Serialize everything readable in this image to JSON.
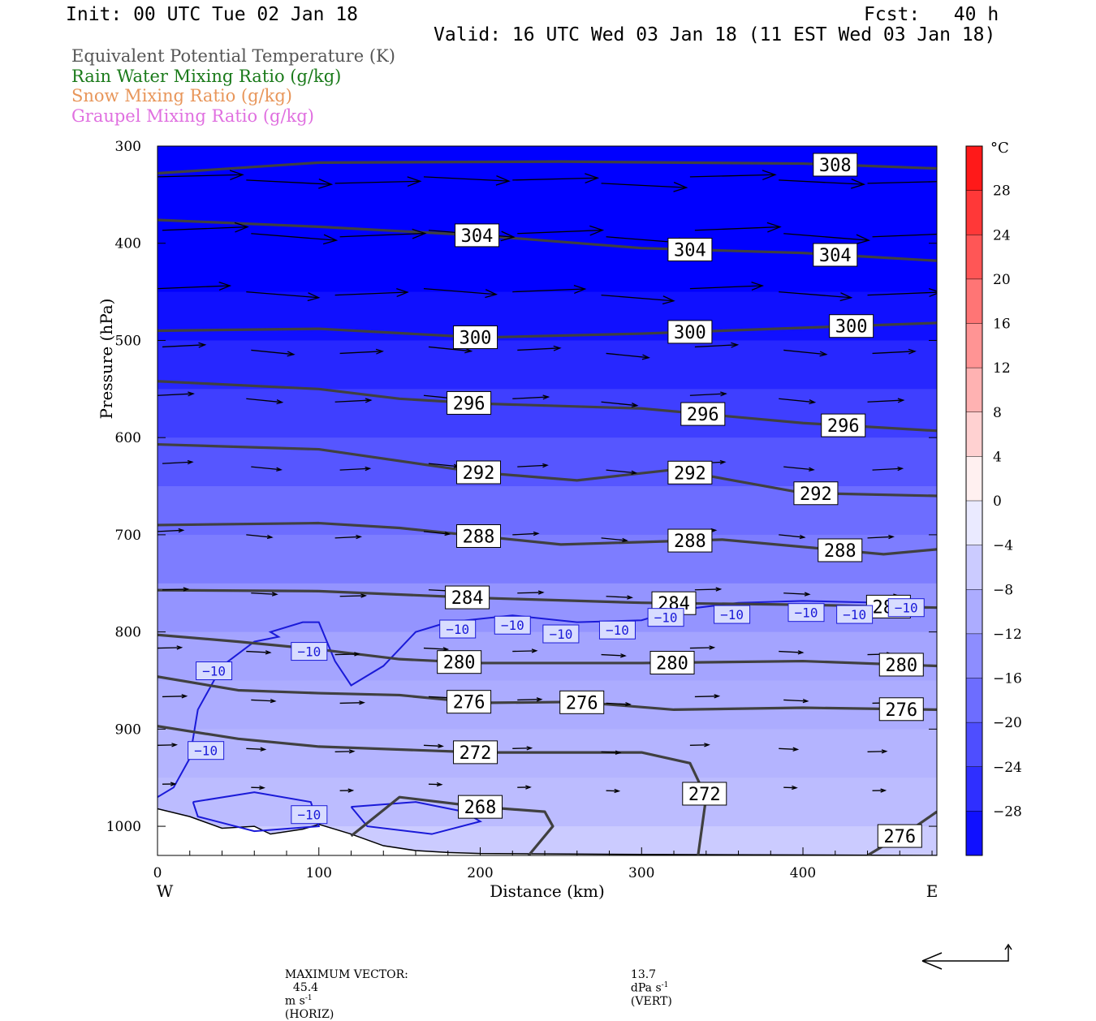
{
  "header": {
    "init": "Init: 00 UTC Tue 02 Jan 18",
    "fcst": "Fcst:   40 h",
    "valid": "Valid: 16 UTC Wed 03 Jan 18 (11 EST Wed 03 Jan 18)"
  },
  "legend": [
    {
      "text": "Equivalent Potential Temperature (K)",
      "color": "#555555"
    },
    {
      "text": "Rain Water Mixing Ratio (g/kg)",
      "color": "#1a7a1a"
    },
    {
      "text": "Snow Mixing Ratio (g/kg)",
      "color": "#e8965a"
    },
    {
      "text": "Graupel Mixing Ratio (g/kg)",
      "color": "#e070e0"
    }
  ],
  "footer": {
    "max_vector_label": "MAXIMUM VECTOR:",
    "horiz_value": "45.4",
    "horiz_unit": "m s",
    "horiz_exp": "-1",
    "horiz_tag": "(HORIZ)",
    "vert_value": "13.7",
    "vert_unit": "dPa s",
    "vert_exp": "-1",
    "vert_tag": "(VERT)"
  },
  "chart_data": {
    "type": "heatmap",
    "xlabel": "Distance (km)",
    "ylabel": "Pressure (hPa)",
    "x_ticks": [
      0,
      100,
      200,
      300,
      400
    ],
    "y_ticks": [
      300,
      400,
      500,
      600,
      700,
      800,
      900,
      1000
    ],
    "xlim": [
      0,
      483
    ],
    "ylim": [
      1030,
      300
    ],
    "x_end_labels": {
      "left": "W",
      "right": "E"
    },
    "colorbar": {
      "unit": "°C",
      "labels": [
        "28",
        "24",
        "20",
        "16",
        "12",
        "8",
        "4",
        "0",
        "−4",
        "−8",
        "−12",
        "−16",
        "−20",
        "−24",
        "−28"
      ]
    },
    "temperature_field_bands": [
      {
        "p": 300,
        "t": -32
      },
      {
        "p": 450,
        "t": -30
      },
      {
        "p": 500,
        "t": -27
      },
      {
        "p": 550,
        "t": -24
      },
      {
        "p": 600,
        "t": -21
      },
      {
        "p": 650,
        "t": -18
      },
      {
        "p": 700,
        "t": -16
      },
      {
        "p": 750,
        "t": -13
      },
      {
        "p": 800,
        "t": -11
      },
      {
        "p": 850,
        "t": -10
      },
      {
        "p": 900,
        "t": -9
      },
      {
        "p": 950,
        "t": -8
      },
      {
        "p": 1000,
        "t": -6
      },
      {
        "p": 1030,
        "t": -5
      }
    ],
    "theta_e_contours": [
      {
        "value": 308,
        "points": [
          [
            0,
            328
          ],
          [
            100,
            317
          ],
          [
            250,
            316
          ],
          [
            400,
            318
          ],
          [
            483,
            323
          ]
        ],
        "labels": [
          {
            "x": 420,
            "text": "308"
          }
        ]
      },
      {
        "value": 304,
        "points": [
          [
            0,
            376
          ],
          [
            100,
            383
          ],
          [
            200,
            392
          ],
          [
            300,
            405
          ],
          [
            400,
            410
          ],
          [
            483,
            418
          ]
        ],
        "labels": [
          {
            "x": 198,
            "text": "304"
          },
          {
            "x": 330,
            "text": "304"
          },
          {
            "x": 420,
            "text": "304"
          }
        ]
      },
      {
        "value": 300,
        "points": [
          [
            0,
            490
          ],
          [
            100,
            488
          ],
          [
            200,
            497
          ],
          [
            300,
            493
          ],
          [
            400,
            487
          ],
          [
            483,
            482
          ]
        ],
        "labels": [
          {
            "x": 197,
            "text": "300"
          },
          {
            "x": 330,
            "text": "300"
          },
          {
            "x": 430,
            "text": "300"
          }
        ]
      },
      {
        "value": 296,
        "points": [
          [
            0,
            542
          ],
          [
            100,
            550
          ],
          [
            150,
            560
          ],
          [
            200,
            565
          ],
          [
            300,
            570
          ],
          [
            400,
            585
          ],
          [
            483,
            593
          ]
        ],
        "labels": [
          {
            "x": 193,
            "text": "296"
          },
          {
            "x": 338,
            "text": "296"
          },
          {
            "x": 425,
            "text": "296"
          }
        ]
      },
      {
        "value": 292,
        "points": [
          [
            0,
            607
          ],
          [
            100,
            612
          ],
          [
            200,
            636
          ],
          [
            260,
            644
          ],
          [
            320,
            633
          ],
          [
            400,
            657
          ],
          [
            483,
            660
          ]
        ],
        "labels": [
          {
            "x": 199,
            "text": "292"
          },
          {
            "x": 330,
            "text": "292"
          },
          {
            "x": 408,
            "text": "292"
          }
        ]
      },
      {
        "value": 288,
        "points": [
          [
            0,
            690
          ],
          [
            100,
            688
          ],
          [
            150,
            693
          ],
          [
            250,
            710
          ],
          [
            350,
            705
          ],
          [
            450,
            720
          ],
          [
            483,
            715
          ]
        ],
        "labels": [
          {
            "x": 199,
            "text": "288"
          },
          {
            "x": 330,
            "text": "288"
          },
          {
            "x": 423,
            "text": "288"
          }
        ]
      },
      {
        "value": 284,
        "points": [
          [
            0,
            757
          ],
          [
            100,
            758
          ],
          [
            200,
            765
          ],
          [
            300,
            770
          ],
          [
            400,
            772
          ],
          [
            483,
            775
          ]
        ],
        "labels": [
          {
            "x": 192,
            "text": "284"
          },
          {
            "x": 320,
            "text": "284"
          },
          {
            "x": 453,
            "text": "284"
          }
        ]
      },
      {
        "value": 280,
        "points": [
          [
            0,
            803
          ],
          [
            50,
            810
          ],
          [
            100,
            818
          ],
          [
            150,
            828
          ],
          [
            200,
            832
          ],
          [
            300,
            832
          ],
          [
            400,
            830
          ],
          [
            483,
            835
          ]
        ],
        "labels": [
          {
            "x": 187,
            "text": "280"
          },
          {
            "x": 319,
            "text": "280"
          },
          {
            "x": 461,
            "text": "280"
          }
        ]
      },
      {
        "value": 276,
        "points": [
          [
            0,
            846
          ],
          [
            50,
            860
          ],
          [
            100,
            863
          ],
          [
            150,
            865
          ],
          [
            200,
            873
          ],
          [
            260,
            872
          ],
          [
            320,
            880
          ],
          [
            400,
            878
          ],
          [
            483,
            880
          ]
        ],
        "labels": [
          {
            "x": 193,
            "text": "276"
          },
          {
            "x": 263,
            "text": "276"
          },
          {
            "x": 461,
            "text": "276"
          }
        ]
      },
      {
        "value": 272,
        "points": [
          [
            0,
            897
          ],
          [
            50,
            910
          ],
          [
            100,
            918
          ],
          [
            200,
            924
          ],
          [
            300,
            924
          ],
          [
            330,
            935
          ],
          [
            340,
            970
          ],
          [
            335,
            1030
          ]
        ],
        "labels": [
          {
            "x": 197,
            "text": "272"
          },
          {
            "x": 339,
            "text": "272"
          }
        ]
      },
      {
        "value": 268,
        "points": [
          [
            120,
            1010
          ],
          [
            150,
            970
          ],
          [
            200,
            980
          ],
          [
            240,
            985
          ],
          [
            245,
            1000
          ],
          [
            230,
            1030
          ]
        ],
        "labels": [
          {
            "x": 200,
            "text": "268"
          }
        ]
      },
      {
        "value": 276,
        "points": [
          [
            440,
            1030
          ],
          [
            470,
            1000
          ],
          [
            483,
            985
          ]
        ],
        "labels": [
          {
            "x": 460,
            "text": "276"
          }
        ]
      }
    ],
    "isotherm_minus10": {
      "value": -10,
      "points": [
        [
          0,
          970
        ],
        [
          10,
          960
        ],
        [
          20,
          930
        ],
        [
          25,
          880
        ],
        [
          40,
          835
        ],
        [
          60,
          810
        ],
        [
          75,
          805
        ],
        [
          70,
          800
        ],
        [
          90,
          790
        ],
        [
          100,
          790
        ],
        [
          110,
          830
        ],
        [
          120,
          855
        ],
        [
          140,
          835
        ],
        [
          160,
          800
        ],
        [
          180,
          790
        ],
        [
          220,
          783
        ],
        [
          260,
          790
        ],
        [
          300,
          788
        ],
        [
          320,
          778
        ],
        [
          360,
          770
        ],
        [
          400,
          768
        ],
        [
          450,
          770
        ],
        [
          470,
          775
        ]
      ],
      "labels": [
        {
          "x": 35,
          "p": 840,
          "text": "−10"
        },
        {
          "x": 94,
          "p": 820,
          "text": "−10"
        },
        {
          "x": 30,
          "p": 922,
          "text": "−10"
        },
        {
          "x": 94,
          "p": 988,
          "text": "−10"
        },
        {
          "x": 186,
          "p": 797,
          "text": "−10"
        },
        {
          "x": 220,
          "p": 793,
          "text": "−10"
        },
        {
          "x": 250,
          "p": 802,
          "text": "−10"
        },
        {
          "x": 285,
          "p": 798,
          "text": "−10"
        },
        {
          "x": 315,
          "p": 785,
          "text": "−10"
        },
        {
          "x": 356,
          "p": 782,
          "text": "−10"
        },
        {
          "x": 402,
          "p": 780,
          "text": "−10"
        },
        {
          "x": 432,
          "p": 782,
          "text": "−10"
        },
        {
          "x": 464,
          "p": 775,
          "text": "−10"
        }
      ]
    },
    "isotherm_cold_pockets": [
      {
        "points": [
          [
            22,
            975
          ],
          [
            60,
            965
          ],
          [
            95,
            975
          ],
          [
            100,
            1000
          ],
          [
            60,
            1005
          ],
          [
            25,
            990
          ],
          [
            22,
            975
          ]
        ]
      },
      {
        "points": [
          [
            120,
            980
          ],
          [
            160,
            975
          ],
          [
            190,
            985
          ],
          [
            200,
            995
          ],
          [
            170,
            1008
          ],
          [
            130,
            1000
          ],
          [
            120,
            980
          ]
        ]
      }
    ],
    "terrain_surface": [
      [
        0,
        982
      ],
      [
        20,
        990
      ],
      [
        40,
        1002
      ],
      [
        60,
        1000
      ],
      [
        70,
        1008
      ],
      [
        90,
        1003
      ],
      [
        100,
        998
      ],
      [
        120,
        1008
      ],
      [
        140,
        1020
      ],
      [
        160,
        1025
      ],
      [
        180,
        1027
      ],
      [
        200,
        1028
      ],
      [
        300,
        1029
      ],
      [
        483,
        1030
      ]
    ],
    "wind_vectors_rows": [
      {
        "p": 335,
        "u": 1.0,
        "w": 0.05
      },
      {
        "p": 390,
        "u": 1.0,
        "w": 0.08
      },
      {
        "p": 450,
        "u": 0.85,
        "w": 0.08
      },
      {
        "p": 510,
        "u": 0.5,
        "w": 0.1
      },
      {
        "p": 560,
        "u": 0.42,
        "w": 0.1
      },
      {
        "p": 630,
        "u": 0.35,
        "w": 0.1
      },
      {
        "p": 700,
        "u": 0.3,
        "w": 0.1
      },
      {
        "p": 760,
        "u": 0.3,
        "w": 0.05
      },
      {
        "p": 820,
        "u": 0.28,
        "w": 0.05
      },
      {
        "p": 870,
        "u": 0.28,
        "w": 0.05
      },
      {
        "p": 920,
        "u": 0.22,
        "w": 0.05
      },
      {
        "p": 960,
        "u": 0.15,
        "w": 0.03
      }
    ]
  }
}
